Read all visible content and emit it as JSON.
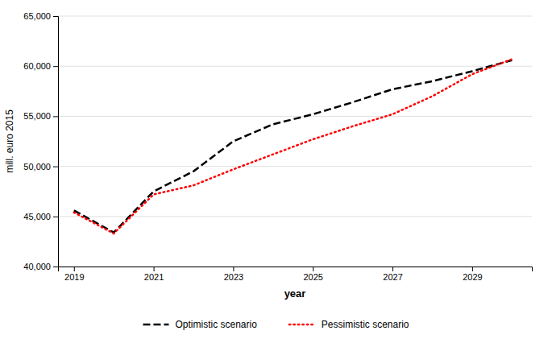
{
  "chart_data": {
    "type": "line",
    "x": [
      2019,
      2020,
      2021,
      2022,
      2023,
      2024,
      2025,
      2026,
      2027,
      2028,
      2029,
      2030
    ],
    "series": [
      {
        "name": "Optimistic scenario",
        "color": "#000000",
        "line_style": "dashed",
        "values": [
          45600,
          43400,
          47500,
          49500,
          52500,
          54200,
          55200,
          56400,
          57700,
          58500,
          59500,
          60600
        ]
      },
      {
        "name": "Pessimistic scenario",
        "color": "#ff0000",
        "line_style": "dotted",
        "values": [
          45400,
          43300,
          47200,
          48100,
          49700,
          51200,
          52700,
          54000,
          55200,
          57000,
          59200,
          60700
        ]
      }
    ],
    "xlabel": "year",
    "ylabel": "mill. euro 2015",
    "xlim": [
      2018.6,
      2030.5
    ],
    "xticks": [
      2019,
      2021,
      2023,
      2025,
      2027,
      2029
    ],
    "ylim": [
      40000,
      65000
    ],
    "yticks": [
      {
        "value": 40000,
        "label": "40,000"
      },
      {
        "value": 45000,
        "label": "45,000"
      },
      {
        "value": 50000,
        "label": "50,000"
      },
      {
        "value": 55000,
        "label": "55,000"
      },
      {
        "value": 60000,
        "label": "60,000"
      },
      {
        "value": 65000,
        "label": "65,000"
      }
    ],
    "grid": true,
    "legend": "bottom"
  }
}
